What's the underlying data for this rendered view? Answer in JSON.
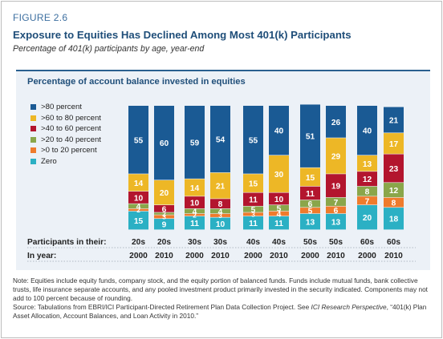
{
  "figure_label": "FIGURE 2.6",
  "title": "Exposure to Equities Has Declined Among Most 401(k) Participants",
  "subtitle": "Percentage of 401(k) participants by age, year-end",
  "note": "Note: Equities include equity funds, company stock, and the equity portion of balanced funds. Funds include mutual funds, bank collective trusts, life insurance separate accounts, and any pooled investment product primarily invested in the security indicated. Components may not add to 100 percent because of rounding.",
  "source_text": "Source: Tabulations from EBRI/ICI Participant-Directed Retirement Plan Data Collection Project. See ",
  "source_italic": "ICI Research Perspective",
  "source_end": ", “401(k) Plan Asset Allocation, Account Balances, and Loan Activity in 2010.”",
  "colors": {
    "zero": "#2bb0c4",
    "gt0_20": "#ef7b2c",
    "gt20_40": "#8aa64a",
    "gt40_60": "#b3152e",
    "gt60_80": "#edb726",
    "gt80": "#1a5a94"
  },
  "chart_data": {
    "type": "bar",
    "stacked": true,
    "orientation": "vertical",
    "title": "Percentage of account balance invested in equities",
    "row_labels": [
      "Participants in their:",
      "In year:"
    ],
    "ages": [
      "20s",
      "20s",
      "30s",
      "30s",
      "40s",
      "40s",
      "50s",
      "50s",
      "60s",
      "60s"
    ],
    "years": [
      "2000",
      "2010",
      "2000",
      "2010",
      "2000",
      "2010",
      "2000",
      "2010",
      "2000",
      "2010"
    ],
    "legend_placement": "left",
    "series": [
      {
        "name": "Zero",
        "color_key": "zero",
        "values": [
          15,
          9,
          11,
          10,
          11,
          11,
          13,
          13,
          20,
          18
        ]
      },
      {
        "name": ">0 to 20 percent",
        "color_key": "gt0_20",
        "values": [
          2,
          3,
          2,
          3,
          3,
          4,
          5,
          6,
          7,
          8
        ]
      },
      {
        "name": ">20 to 40 percent",
        "color_key": "gt20_40",
        "values": [
          4,
          2,
          4,
          4,
          5,
          5,
          6,
          7,
          8,
          12
        ]
      },
      {
        "name": ">40 to 60 percent",
        "color_key": "gt40_60",
        "values": [
          10,
          6,
          10,
          8,
          11,
          10,
          11,
          19,
          12,
          23
        ]
      },
      {
        "name": ">60 to 80 percent",
        "color_key": "gt60_80",
        "values": [
          14,
          20,
          14,
          21,
          15,
          30,
          15,
          29,
          13,
          17
        ]
      },
      {
        "name": ">80 percent",
        "color_key": "gt80",
        "values": [
          55,
          60,
          59,
          54,
          55,
          40,
          51,
          26,
          40,
          21
        ]
      }
    ]
  }
}
